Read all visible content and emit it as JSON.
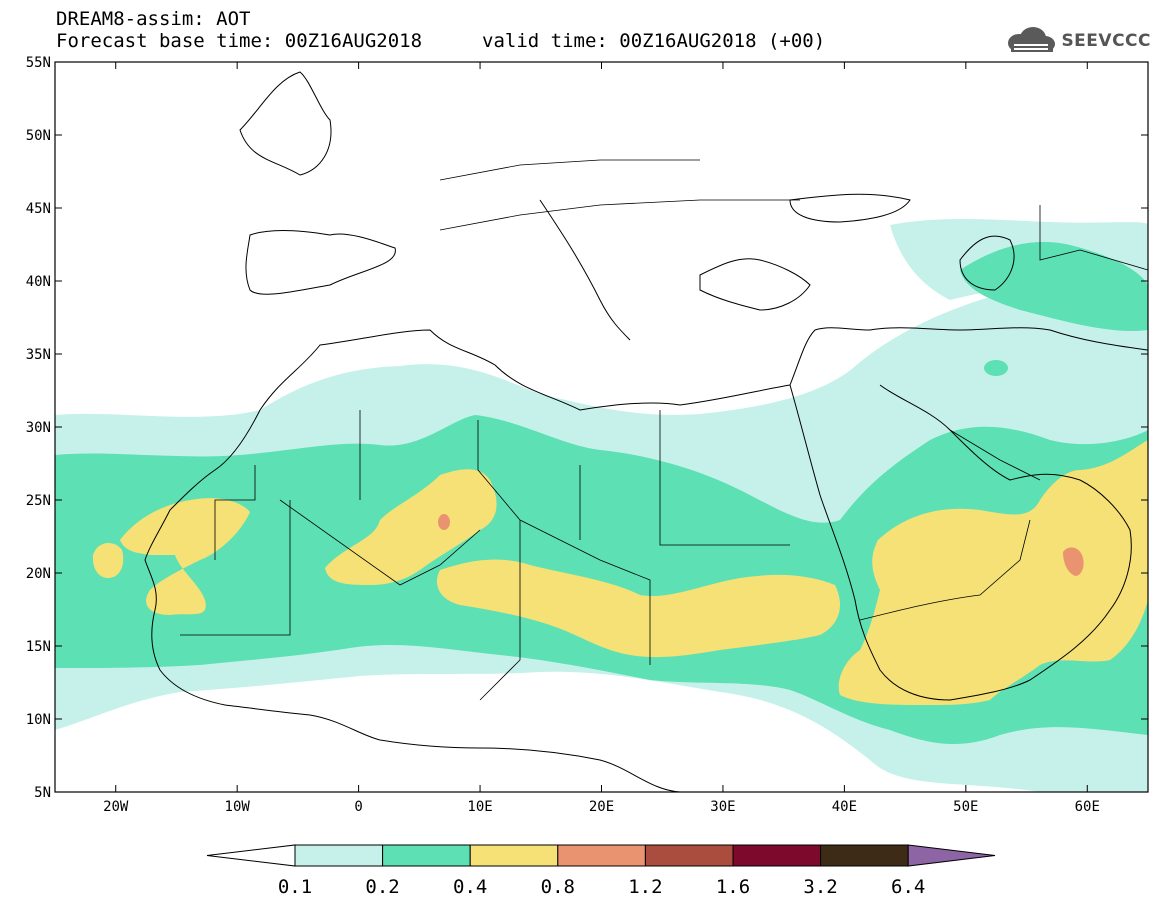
{
  "header": {
    "title_line": "DREAM8-assim: AOT",
    "base_time": "Forecast base time: 00Z16AUG2018",
    "valid_time": "valid time: 00Z16AUG2018 (+00)"
  },
  "logo": {
    "text": "SEEVCCC",
    "icon": "cloud-icon"
  },
  "map": {
    "lon_range": [
      -25,
      65
    ],
    "lat_range": [
      5,
      55
    ],
    "lon_ticks": [
      {
        "value": -20,
        "label": "20W"
      },
      {
        "value": -10,
        "label": "10W"
      },
      {
        "value": 0,
        "label": "0"
      },
      {
        "value": 10,
        "label": "10E"
      },
      {
        "value": 20,
        "label": "20E"
      },
      {
        "value": 30,
        "label": "30E"
      },
      {
        "value": 40,
        "label": "40E"
      },
      {
        "value": 50,
        "label": "50E"
      },
      {
        "value": 60,
        "label": "60E"
      }
    ],
    "lat_ticks": [
      {
        "value": 55,
        "label": "55N"
      },
      {
        "value": 50,
        "label": "50N"
      },
      {
        "value": 45,
        "label": "45N"
      },
      {
        "value": 40,
        "label": "40N"
      },
      {
        "value": 35,
        "label": "35N"
      },
      {
        "value": 30,
        "label": "30N"
      },
      {
        "value": 25,
        "label": "25N"
      },
      {
        "value": 20,
        "label": "20N"
      },
      {
        "value": 15,
        "label": "15N"
      },
      {
        "value": 10,
        "label": "10N"
      },
      {
        "value": 5,
        "label": "5N"
      }
    ]
  },
  "colorbar": {
    "levels": [
      "0.1",
      "0.2",
      "0.4",
      "0.8",
      "1.2",
      "1.6",
      "3.2",
      "6.4"
    ],
    "colors": [
      "#ffffff",
      "#c6f1ea",
      "#5ce0b4",
      "#f5e176",
      "#ea9370",
      "#ab4d3e",
      "#7d0a2c",
      "#3d2a17",
      "#8d65a5"
    ]
  }
}
